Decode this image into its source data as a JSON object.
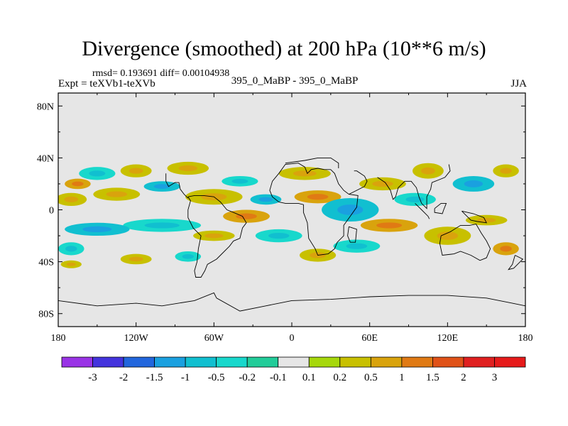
{
  "title": "Divergence (smoothed) at 200 hPa (10**6 m/s)",
  "stats_line": "rmsd= 0.193691 diff= 0.00104938",
  "expt_label": "Expt = teXVb1-teXVb",
  "center_label": "395_0_MaBP - 395_0_MaBP",
  "season": "JJA",
  "chart_data": {
    "type": "heatmap",
    "title": "Divergence (smoothed) at 200 hPa (10**6 m/s)",
    "x_range": [
      -180,
      180
    ],
    "y_range": [
      -90,
      90
    ],
    "x_ticks": [
      {
        "value": -180,
        "label": "180"
      },
      {
        "value": -120,
        "label": "120W"
      },
      {
        "value": -60,
        "label": "60W"
      },
      {
        "value": 0,
        "label": "0"
      },
      {
        "value": 60,
        "label": "60E"
      },
      {
        "value": 120,
        "label": "120E"
      },
      {
        "value": 180,
        "label": "180"
      }
    ],
    "y_ticks": [
      {
        "value": 80,
        "label": "80N"
      },
      {
        "value": 40,
        "label": "40N"
      },
      {
        "value": 0,
        "label": "0"
      },
      {
        "value": -40,
        "label": "40S"
      },
      {
        "value": -80,
        "label": "80S"
      }
    ],
    "colorbar": {
      "boundaries": [
        "-3",
        "-2",
        "-1.5",
        "-1",
        "-0.5",
        "-0.2",
        "-0.1",
        "0.1",
        "0.2",
        "0.5",
        "1",
        "1.5",
        "2",
        "3"
      ],
      "colors": [
        "#9933e6",
        "#4433dd",
        "#2266dd",
        "#1aa0e0",
        "#11bfd0",
        "#18d8cc",
        "#22cc99",
        "#e6e6e6",
        "#a6d80c",
        "#c8c000",
        "#d9a30d",
        "#e07a14",
        "#e05218",
        "#e02020",
        "#e61a1a"
      ]
    },
    "background_color": "#e6e6e6",
    "anomaly_fields": [
      {
        "lon": -170,
        "lat": 8,
        "rlon": 12,
        "rlat": 5,
        "class": 9
      },
      {
        "lon": -165,
        "lat": 20,
        "rlon": 10,
        "rlat": 4,
        "class": 10
      },
      {
        "lon": -150,
        "lat": 28,
        "rlon": 14,
        "rlat": 5,
        "class": 5
      },
      {
        "lon": -135,
        "lat": 12,
        "rlon": 18,
        "rlat": 5,
        "class": 9
      },
      {
        "lon": -120,
        "lat": 30,
        "rlon": 12,
        "rlat": 5,
        "class": 9
      },
      {
        "lon": -100,
        "lat": 18,
        "rlon": 14,
        "rlat": 4,
        "class": 4
      },
      {
        "lon": -80,
        "lat": 32,
        "rlon": 16,
        "rlat": 5,
        "class": 9
      },
      {
        "lon": -60,
        "lat": 10,
        "rlon": 22,
        "rlat": 6,
        "class": 9
      },
      {
        "lon": -40,
        "lat": 22,
        "rlon": 14,
        "rlat": 4,
        "class": 5
      },
      {
        "lon": -20,
        "lat": 8,
        "rlon": 12,
        "rlat": 4,
        "class": 4
      },
      {
        "lon": 10,
        "lat": 28,
        "rlon": 20,
        "rlat": 5,
        "class": 9
      },
      {
        "lon": 20,
        "lat": 10,
        "rlon": 18,
        "rlat": 5,
        "class": 10
      },
      {
        "lon": 45,
        "lat": 0,
        "rlon": 22,
        "rlat": 9,
        "class": 4
      },
      {
        "lon": 70,
        "lat": 20,
        "rlon": 18,
        "rlat": 5,
        "class": 9
      },
      {
        "lon": 95,
        "lat": 8,
        "rlon": 16,
        "rlat": 5,
        "class": 5
      },
      {
        "lon": 105,
        "lat": 30,
        "rlon": 12,
        "rlat": 6,
        "class": 9
      },
      {
        "lon": 140,
        "lat": 20,
        "rlon": 16,
        "rlat": 6,
        "class": 4
      },
      {
        "lon": 165,
        "lat": 30,
        "rlon": 10,
        "rlat": 5,
        "class": 9
      },
      {
        "lon": 150,
        "lat": -8,
        "rlon": 16,
        "rlat": 4,
        "class": 9
      },
      {
        "lon": 120,
        "lat": -20,
        "rlon": 18,
        "rlat": 7,
        "class": 9
      },
      {
        "lon": 75,
        "lat": -12,
        "rlon": 22,
        "rlat": 5,
        "class": 10
      },
      {
        "lon": 50,
        "lat": -28,
        "rlon": 18,
        "rlat": 5,
        "class": 5
      },
      {
        "lon": 20,
        "lat": -35,
        "rlon": 14,
        "rlat": 5,
        "class": 9
      },
      {
        "lon": -10,
        "lat": -20,
        "rlon": 18,
        "rlat": 5,
        "class": 5
      },
      {
        "lon": -35,
        "lat": -5,
        "rlon": 18,
        "rlat": 5,
        "class": 10
      },
      {
        "lon": -60,
        "lat": -20,
        "rlon": 16,
        "rlat": 4,
        "class": 9
      },
      {
        "lon": -100,
        "lat": -12,
        "rlon": 30,
        "rlat": 5,
        "class": 5
      },
      {
        "lon": -150,
        "lat": -15,
        "rlon": 25,
        "rlat": 5,
        "class": 4
      },
      {
        "lon": -170,
        "lat": -30,
        "rlon": 10,
        "rlat": 5,
        "class": 5
      },
      {
        "lon": -120,
        "lat": -38,
        "rlon": 12,
        "rlat": 4,
        "class": 9
      },
      {
        "lon": -80,
        "lat": -36,
        "rlon": 10,
        "rlat": 4,
        "class": 5
      },
      {
        "lon": -170,
        "lat": -42,
        "rlon": 8,
        "rlat": 3,
        "class": 9
      },
      {
        "lon": 165,
        "lat": -30,
        "rlon": 10,
        "rlat": 5,
        "class": 10
      }
    ],
    "coastline_segments": [
      [
        [
          -5,
          35
        ],
        [
          5,
          36
        ],
        [
          10,
          33
        ],
        [
          12,
          28
        ],
        [
          15,
          31
        ],
        [
          20,
          32
        ],
        [
          25,
          31
        ],
        [
          30,
          31
        ],
        [
          33,
          28
        ],
        [
          36,
          20
        ],
        [
          40,
          15
        ],
        [
          44,
          12
        ],
        [
          51,
          11
        ],
        [
          50,
          2
        ],
        [
          45,
          -5
        ],
        [
          40,
          -12
        ],
        [
          40,
          -20
        ],
        [
          35,
          -25
        ],
        [
          33,
          -30
        ],
        [
          28,
          -34
        ],
        [
          20,
          -35
        ],
        [
          18,
          -30
        ],
        [
          13,
          -22
        ],
        [
          12,
          -10
        ],
        [
          9,
          -2
        ],
        [
          9,
          4
        ],
        [
          5,
          5
        ],
        [
          -5,
          5
        ],
        [
          -10,
          6
        ],
        [
          -15,
          10
        ],
        [
          -17,
          15
        ],
        [
          -15,
          22
        ],
        [
          -10,
          28
        ],
        [
          -5,
          35
        ]
      ],
      [
        [
          -80,
          10
        ],
        [
          -75,
          11
        ],
        [
          -68,
          11
        ],
        [
          -60,
          10
        ],
        [
          -55,
          6
        ],
        [
          -50,
          0
        ],
        [
          -45,
          -2
        ],
        [
          -38,
          -5
        ],
        [
          -35,
          -10
        ],
        [
          -38,
          -14
        ],
        [
          -40,
          -22
        ],
        [
          -45,
          -24
        ],
        [
          -48,
          -28
        ],
        [
          -55,
          -35
        ],
        [
          -58,
          -38
        ],
        [
          -65,
          -42
        ],
        [
          -67,
          -47
        ],
        [
          -70,
          -52
        ],
        [
          -74,
          -52
        ],
        [
          -75,
          -47
        ],
        [
          -73,
          -40
        ],
        [
          -72,
          -30
        ],
        [
          -70,
          -20
        ],
        [
          -76,
          -14
        ],
        [
          -80,
          -6
        ],
        [
          -80,
          0
        ],
        [
          -78,
          7
        ],
        [
          -80,
          10
        ]
      ],
      [
        [
          115,
          -20
        ],
        [
          122,
          -17
        ],
        [
          130,
          -12
        ],
        [
          137,
          -12
        ],
        [
          142,
          -11
        ],
        [
          146,
          -18
        ],
        [
          150,
          -24
        ],
        [
          153,
          -30
        ],
        [
          150,
          -37
        ],
        [
          145,
          -39
        ],
        [
          138,
          -35
        ],
        [
          130,
          -32
        ],
        [
          125,
          -34
        ],
        [
          116,
          -35
        ],
        [
          114,
          -26
        ],
        [
          115,
          -20
        ]
      ],
      [
        [
          -97,
          28
        ],
        [
          -97,
          22
        ],
        [
          -95,
          18
        ],
        [
          -90,
          21
        ],
        [
          -87,
          21
        ],
        [
          -86,
          16
        ],
        [
          -83,
          12
        ],
        [
          -80,
          9
        ]
      ],
      [
        [
          -180,
          -70
        ],
        [
          -150,
          -74
        ],
        [
          -120,
          -72
        ],
        [
          -100,
          -74
        ],
        [
          -75,
          -70
        ],
        [
          -60,
          -64
        ],
        [
          -58,
          -68
        ],
        [
          -40,
          -78
        ],
        [
          -20,
          -74
        ],
        [
          0,
          -70
        ],
        [
          30,
          -69
        ],
        [
          60,
          -67
        ],
        [
          90,
          -66
        ],
        [
          120,
          -66
        ],
        [
          150,
          -68
        ],
        [
          170,
          -72
        ],
        [
          180,
          -74
        ]
      ],
      [
        [
          -5,
          36
        ],
        [
          10,
          38
        ],
        [
          20,
          40
        ],
        [
          30,
          40
        ],
        [
          36,
          36
        ],
        [
          36,
          32
        ]
      ],
      [
        [
          44,
          12
        ],
        [
          50,
          15
        ],
        [
          56,
          18
        ],
        [
          58,
          22
        ],
        [
          56,
          26
        ],
        [
          50,
          30
        ],
        [
          48,
          30
        ]
      ],
      [
        [
          66,
          25
        ],
        [
          72,
          21
        ],
        [
          76,
          15
        ],
        [
          78,
          8
        ],
        [
          80,
          10
        ],
        [
          82,
          17
        ],
        [
          87,
          22
        ],
        [
          92,
          22
        ],
        [
          96,
          17
        ],
        [
          98,
          10
        ],
        [
          100,
          5
        ],
        [
          104,
          1
        ],
        [
          104,
          10
        ],
        [
          107,
          16
        ],
        [
          108,
          21
        ],
        [
          113,
          23
        ],
        [
          118,
          25
        ],
        [
          122,
          30
        ],
        [
          121,
          35
        ]
      ],
      [
        [
          95,
          5
        ],
        [
          100,
          0
        ],
        [
          105,
          -5
        ],
        [
          106,
          -7
        ]
      ],
      [
        [
          110,
          1
        ],
        [
          115,
          5
        ],
        [
          119,
          5
        ],
        [
          117,
          0
        ],
        [
          116,
          -3
        ],
        [
          110,
          -2
        ],
        [
          110,
          1
        ]
      ],
      [
        [
          131,
          -1
        ],
        [
          140,
          -3
        ],
        [
          148,
          -6
        ],
        [
          150,
          -10
        ],
        [
          143,
          -9
        ],
        [
          138,
          -8
        ],
        [
          131,
          -1
        ]
      ],
      [
        [
          172,
          -35
        ],
        [
          178,
          -38
        ],
        [
          175,
          -41
        ],
        [
          171,
          -45
        ],
        [
          167,
          -46
        ],
        [
          170,
          -42
        ],
        [
          172,
          -35
        ]
      ],
      [
        [
          44,
          -13
        ],
        [
          50,
          -15
        ],
        [
          49,
          -25
        ],
        [
          45,
          -25
        ],
        [
          43,
          -20
        ],
        [
          44,
          -13
        ]
      ]
    ]
  }
}
